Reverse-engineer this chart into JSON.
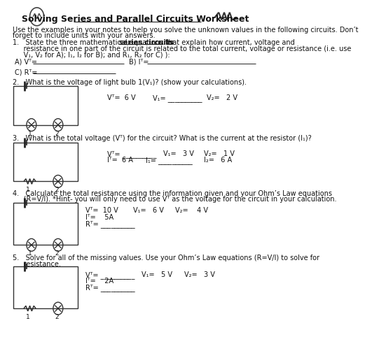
{
  "title": "Solving Series and Parallel Circuits Worksheet",
  "bg_color": "#ffffff",
  "text_color": "#1a1a1a",
  "q1_line1": "1.   State the three mathematical equations for ",
  "q1_underlined": "series circuits",
  "q1_line1b": " that explain how current, voltage and",
  "q1_line2": "     resistance in one part of the circuit is related to the total current, voltage or resistance (i.e. use",
  "q1_line3": "     V₁, V₂ for A); I₁, I₂ for B); and R₁, R₂ for C) ):",
  "intro1": "Use the examples in your notes to help you solve the unknown values in the following circuits. Don’t",
  "intro2": "forget to include units with your answers.",
  "q2_text": "2.   What is the voltage of light bulb 1(V₁)? (show your calculations).",
  "q3_text": "3.   What is the total voltage (Vᵀ) for the circuit? What is the current at the resistor (I₁)?",
  "q4_line1": "4.   Calculate the total resistance using the information given and your Ohm’s Law equations",
  "q4_line2": "     (R=V/I). *Hint- you will only need to use Vᵀ as the voltage for the circuit in your calculation.",
  "q5_line1": "5.   Solve for all of the missing values. Use your Ohm’s Law equations (R=V/I) to solve for",
  "q5_line2": "     resistance."
}
